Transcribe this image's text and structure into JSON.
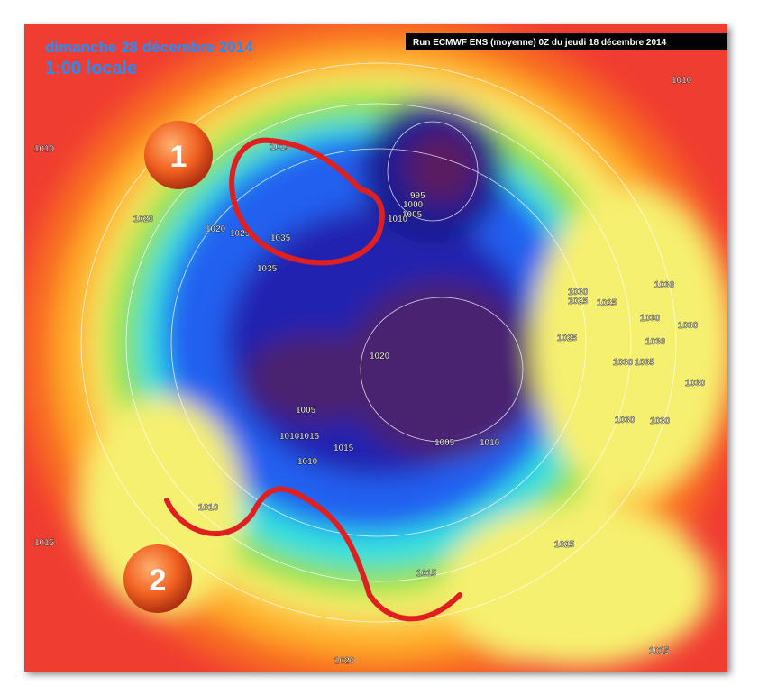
{
  "header": {
    "date": "dimanche 28 décembre 2014",
    "time": "1:00 locale",
    "run": "Run ECMWF ENS (moyenne) 0Z du jeudi 18 décembre 2014"
  },
  "markers": [
    {
      "label": "1"
    },
    {
      "label": "2"
    }
  ],
  "isobar_labels": [
    1010,
    1010,
    1015,
    1020,
    1020,
    1025,
    1035,
    1035,
    995,
    1000,
    1005,
    1010,
    1030,
    1030,
    1025,
    1025,
    1030,
    1030,
    1025,
    1030,
    1020,
    1035,
    1030,
    1030,
    1005,
    1030,
    1030,
    1010,
    1015,
    1015,
    1005,
    1010,
    1010,
    1010,
    1015,
    1025,
    1015,
    1015,
    1020
  ]
}
